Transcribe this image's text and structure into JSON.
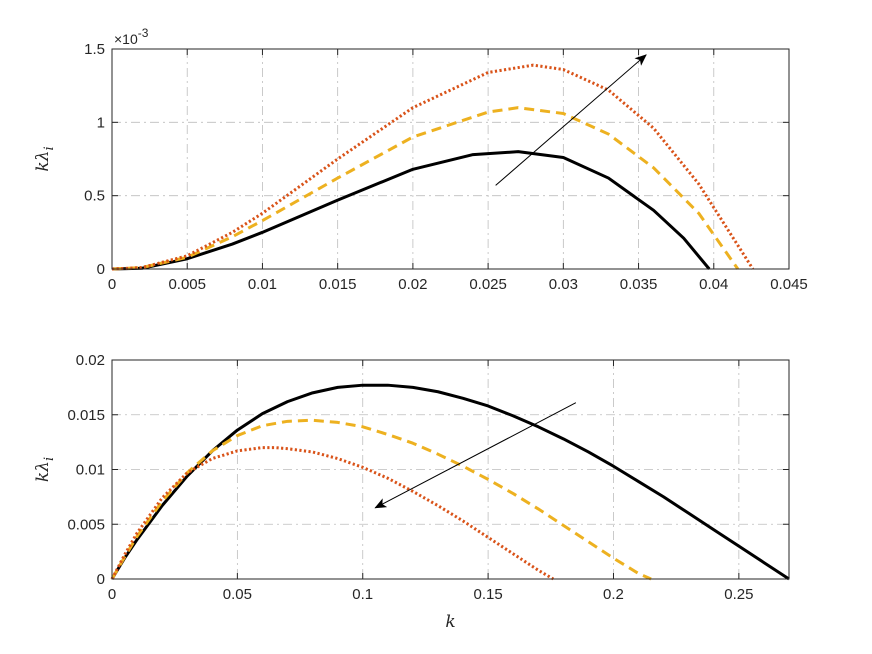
{
  "chart_data": [
    {
      "type": "line",
      "ylabel": "kλi",
      "xlabel": "",
      "y_exponent_label": "×10",
      "y_exponent_power": "-3",
      "xlim": [
        0,
        0.045
      ],
      "ylim": [
        0,
        1.5
      ],
      "x_ticks": [
        0,
        0.005,
        0.01,
        0.015,
        0.02,
        0.025,
        0.03,
        0.035,
        0.04,
        0.045
      ],
      "x_tick_labels": [
        "0",
        "0.005",
        "0.01",
        "0.015",
        "0.02",
        "0.025",
        "0.03",
        "0.035",
        "0.04",
        "0.045"
      ],
      "y_ticks": [
        0,
        0.5,
        1,
        1.5
      ],
      "y_tick_labels": [
        "0",
        "0.5",
        "1",
        "1.5"
      ],
      "grid": true,
      "arrow": {
        "from": [
          0.0255,
          0.57
        ],
        "to": [
          0.0355,
          1.46
        ]
      },
      "series": [
        {
          "style": "solid",
          "color": "#000000",
          "x": [
            0,
            0.002,
            0.005,
            0.008,
            0.01,
            0.015,
            0.02,
            0.024,
            0.027,
            0.03,
            0.033,
            0.036,
            0.038,
            0.0397
          ],
          "y": [
            0,
            0.005,
            0.07,
            0.17,
            0.25,
            0.47,
            0.68,
            0.78,
            0.8,
            0.76,
            0.62,
            0.4,
            0.21,
            0
          ]
        },
        {
          "style": "dashed",
          "color": "#EDB120",
          "x": [
            0,
            0.002,
            0.005,
            0.008,
            0.01,
            0.015,
            0.02,
            0.025,
            0.027,
            0.03,
            0.033,
            0.036,
            0.039,
            0.0416
          ],
          "y": [
            0,
            0.01,
            0.08,
            0.22,
            0.33,
            0.62,
            0.9,
            1.07,
            1.1,
            1.06,
            0.92,
            0.69,
            0.38,
            0
          ]
        },
        {
          "style": "dotted",
          "color": "#D95319",
          "x": [
            0,
            0.002,
            0.005,
            0.008,
            0.01,
            0.015,
            0.02,
            0.025,
            0.028,
            0.03,
            0.033,
            0.036,
            0.039,
            0.0426
          ],
          "y": [
            0,
            0.01,
            0.09,
            0.25,
            0.38,
            0.75,
            1.1,
            1.34,
            1.39,
            1.36,
            1.22,
            0.96,
            0.58,
            0
          ]
        }
      ]
    },
    {
      "type": "line",
      "ylabel": "kλi",
      "xlabel": "k",
      "xlim": [
        0,
        0.27
      ],
      "ylim": [
        0,
        0.02
      ],
      "x_ticks": [
        0,
        0.05,
        0.1,
        0.15,
        0.2,
        0.25
      ],
      "x_tick_labels": [
        "0",
        "0.05",
        "0.1",
        "0.15",
        "0.2",
        "0.25"
      ],
      "y_ticks": [
        0,
        0.005,
        0.01,
        0.015,
        0.02
      ],
      "y_tick_labels": [
        "0",
        "0.005",
        "0.01",
        "0.015",
        "0.02"
      ],
      "grid": true,
      "arrow": {
        "from": [
          0.185,
          0.0161
        ],
        "to": [
          0.105,
          0.0065
        ]
      },
      "series": [
        {
          "style": "solid",
          "color": "#000000",
          "x": [
            0,
            0.005,
            0.01,
            0.02,
            0.03,
            0.04,
            0.05,
            0.06,
            0.07,
            0.08,
            0.09,
            0.1,
            0.11,
            0.12,
            0.13,
            0.14,
            0.15,
            0.16,
            0.17,
            0.18,
            0.19,
            0.2,
            0.21,
            0.22,
            0.23,
            0.24,
            0.25,
            0.26,
            0.27
          ],
          "y": [
            0,
            0.0019,
            0.0036,
            0.0067,
            0.0094,
            0.0117,
            0.0136,
            0.0151,
            0.0162,
            0.017,
            0.0175,
            0.0177,
            0.0177,
            0.0175,
            0.0171,
            0.0165,
            0.0158,
            0.0149,
            0.0139,
            0.0128,
            0.0116,
            0.0103,
            0.0089,
            0.0075,
            0.006,
            0.0045,
            0.003,
            0.0015,
            0
          ]
        },
        {
          "style": "dashed",
          "color": "#EDB120",
          "x": [
            0,
            0.005,
            0.01,
            0.02,
            0.03,
            0.04,
            0.05,
            0.06,
            0.07,
            0.08,
            0.09,
            0.1,
            0.11,
            0.12,
            0.13,
            0.14,
            0.15,
            0.16,
            0.17,
            0.18,
            0.19,
            0.2,
            0.21,
            0.215
          ],
          "y": [
            0,
            0.002,
            0.0039,
            0.0071,
            0.0097,
            0.0117,
            0.0131,
            0.014,
            0.0144,
            0.0145,
            0.0143,
            0.0139,
            0.0132,
            0.0124,
            0.0114,
            0.0103,
            0.0091,
            0.0078,
            0.0064,
            0.0049,
            0.0034,
            0.0019,
            0.0005,
            0
          ]
        },
        {
          "style": "dotted",
          "color": "#D95319",
          "x": [
            0,
            0.005,
            0.01,
            0.02,
            0.03,
            0.04,
            0.05,
            0.06,
            0.065,
            0.07,
            0.08,
            0.09,
            0.1,
            0.11,
            0.12,
            0.13,
            0.14,
            0.15,
            0.16,
            0.17,
            0.176
          ],
          "y": [
            0,
            0.0022,
            0.0042,
            0.0074,
            0.0097,
            0.011,
            0.0117,
            0.012,
            0.012,
            0.0119,
            0.0116,
            0.011,
            0.0102,
            0.0092,
            0.008,
            0.0067,
            0.0053,
            0.0038,
            0.0023,
            0.0008,
            0
          ]
        }
      ]
    }
  ]
}
